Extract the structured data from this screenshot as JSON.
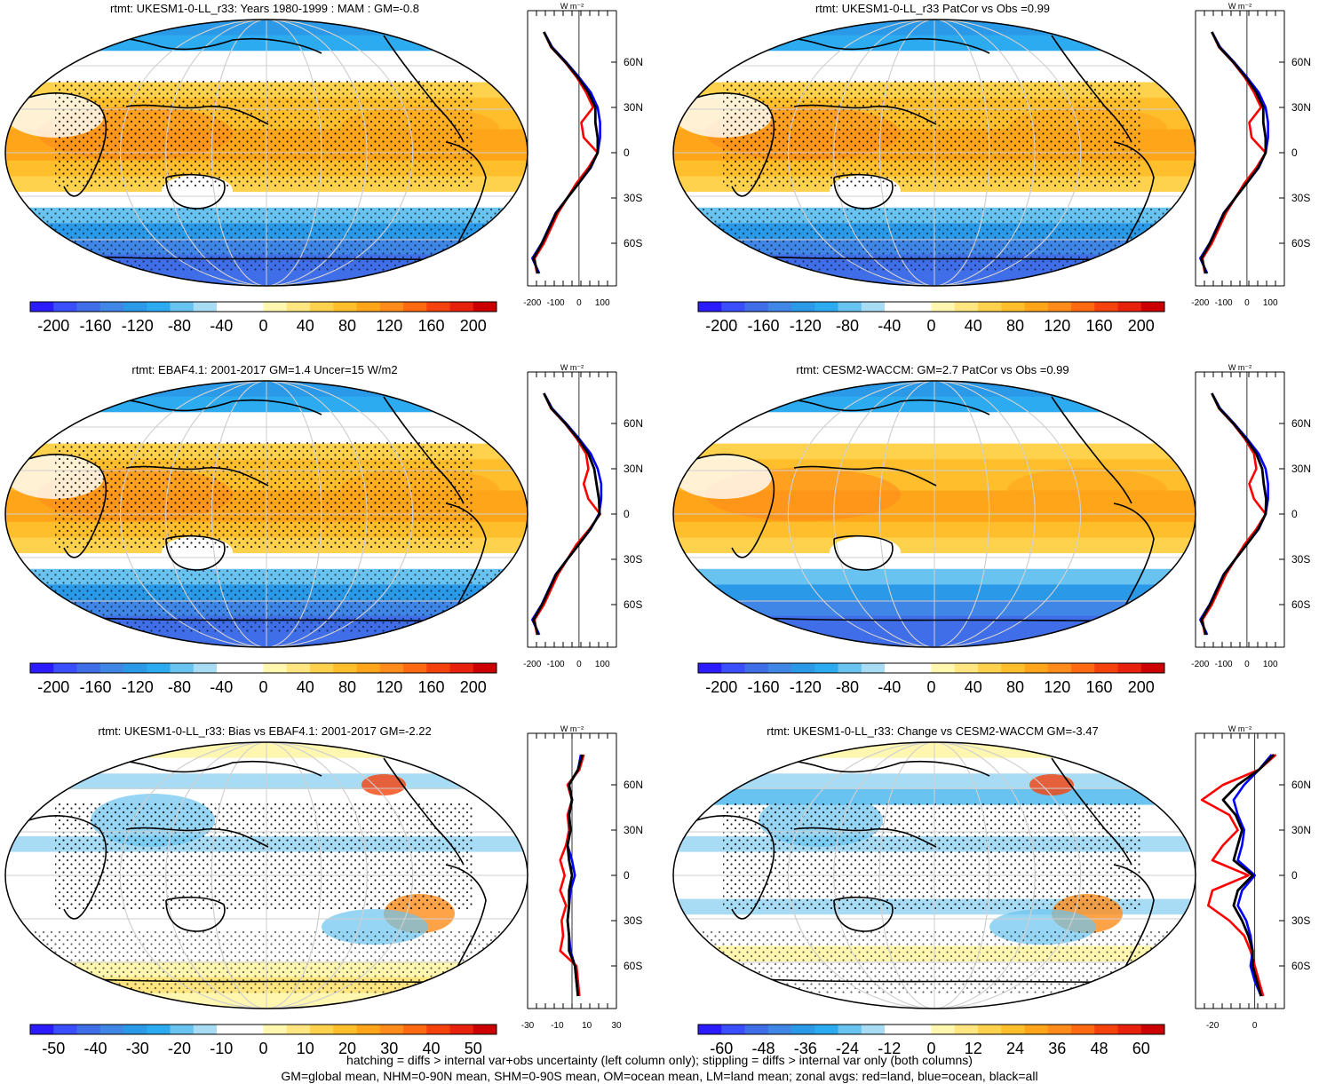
{
  "panels": [
    {
      "title": "rtmt: UKESM1-0-LL_r33: Years 1980-1999 : MAM : GM=-0.8",
      "map_style": "climatology",
      "stipple": true,
      "colorbar": [
        "-200",
        "-160",
        "-120",
        "-80",
        "-40",
        "0",
        "40",
        "80",
        "120",
        "160",
        "200"
      ],
      "zonal_unit": "W m⁻²",
      "zonal_lat_labels": [
        "60N",
        "30N",
        "0",
        "30S",
        "60S"
      ],
      "zonal_x_ticks": [
        "-200",
        "-100",
        "0",
        "100"
      ],
      "zonal_range": [
        -220,
        160
      ],
      "zonal_series": {
        "lat": [
          80,
          70,
          60,
          50,
          40,
          30,
          20,
          10,
          0,
          -10,
          -20,
          -30,
          -40,
          -50,
          -60,
          -70,
          -80
        ],
        "land": [
          -150,
          -120,
          -60,
          -10,
          30,
          60,
          10,
          20,
          80,
          40,
          -10,
          -50,
          -90,
          -120,
          -150,
          -190,
          -180
        ],
        "ocean": [
          -150,
          -115,
          -55,
          0,
          50,
          80,
          90,
          90,
          80,
          50,
          0,
          -50,
          -100,
          -130,
          -160,
          -200,
          -170
        ],
        "all": [
          -150,
          -118,
          -58,
          -5,
          40,
          70,
          70,
          80,
          80,
          48,
          0,
          -50,
          -98,
          -128,
          -158,
          -195,
          -175
        ]
      }
    },
    {
      "title": "rtmt: UKESM1-0-LL_r33 PatCor vs Obs =0.99",
      "map_style": "climatology",
      "stipple": true,
      "colorbar": [
        "-200",
        "-160",
        "-120",
        "-80",
        "-40",
        "0",
        "40",
        "80",
        "120",
        "160",
        "200"
      ],
      "zonal_unit": "W m⁻²",
      "zonal_lat_labels": [
        "60N",
        "30N",
        "0",
        "30S",
        "60S"
      ],
      "zonal_x_ticks": [
        "-200",
        "-100",
        "0",
        "100"
      ],
      "zonal_range": [
        -220,
        160
      ],
      "zonal_series": {
        "lat": [
          80,
          70,
          60,
          50,
          40,
          30,
          20,
          10,
          0,
          -10,
          -20,
          -30,
          -40,
          -50,
          -60,
          -70,
          -80
        ],
        "land": [
          -150,
          -120,
          -60,
          -10,
          30,
          60,
          10,
          20,
          80,
          40,
          -10,
          -50,
          -90,
          -120,
          -150,
          -190,
          -180
        ],
        "ocean": [
          -150,
          -115,
          -55,
          0,
          50,
          80,
          90,
          90,
          80,
          50,
          0,
          -50,
          -100,
          -130,
          -160,
          -200,
          -170
        ],
        "all": [
          -150,
          -118,
          -58,
          -5,
          40,
          70,
          70,
          80,
          80,
          48,
          0,
          -50,
          -98,
          -128,
          -158,
          -195,
          -175
        ]
      }
    },
    {
      "title": "rtmt: EBAF4.1: 2001-2017 GM=1.4 Uncer=15 W/m2",
      "map_style": "climatology",
      "stipple": true,
      "colorbar": [
        "-200",
        "-160",
        "-120",
        "-80",
        "-40",
        "0",
        "40",
        "80",
        "120",
        "160",
        "200"
      ],
      "zonal_unit": "W m⁻²",
      "zonal_lat_labels": [
        "60N",
        "30N",
        "0",
        "30S",
        "60S"
      ],
      "zonal_x_ticks": [
        "-200",
        "-100",
        "0",
        "100"
      ],
      "zonal_range": [
        -220,
        160
      ],
      "zonal_series": {
        "lat": [
          80,
          70,
          60,
          50,
          40,
          30,
          20,
          10,
          0,
          -10,
          -20,
          -30,
          -40,
          -50,
          -60,
          -70,
          -80
        ],
        "land": [
          -150,
          -120,
          -60,
          -10,
          30,
          40,
          20,
          40,
          90,
          45,
          -10,
          -50,
          -90,
          -120,
          -150,
          -190,
          -180
        ],
        "ocean": [
          -150,
          -115,
          -55,
          0,
          50,
          80,
          95,
          95,
          85,
          50,
          0,
          -50,
          -100,
          -130,
          -160,
          -200,
          -170
        ],
        "all": [
          -150,
          -118,
          -58,
          -5,
          40,
          65,
          75,
          85,
          88,
          48,
          0,
          -50,
          -98,
          -128,
          -158,
          -195,
          -175
        ]
      }
    },
    {
      "title": "rtmt: CESM2-WACCM: GM=2.7 PatCor vs Obs =0.99",
      "map_style": "climatology",
      "stipple": false,
      "colorbar": [
        "-200",
        "-160",
        "-120",
        "-80",
        "-40",
        "0",
        "40",
        "80",
        "120",
        "160",
        "200"
      ],
      "zonal_unit": "W m⁻²",
      "zonal_lat_labels": [
        "60N",
        "30N",
        "0",
        "30S",
        "60S"
      ],
      "zonal_x_ticks": [
        "-200",
        "-100",
        "0",
        "100"
      ],
      "zonal_range": [
        -220,
        160
      ],
      "zonal_series": {
        "lat": [
          80,
          70,
          60,
          50,
          40,
          30,
          20,
          10,
          0,
          -10,
          -20,
          -30,
          -40,
          -50,
          -60,
          -70,
          -80
        ],
        "land": [
          -150,
          -120,
          -60,
          -10,
          30,
          40,
          10,
          30,
          80,
          40,
          -10,
          -50,
          -90,
          -120,
          -150,
          -190,
          -180
        ],
        "ocean": [
          -150,
          -115,
          -55,
          0,
          50,
          80,
          90,
          90,
          80,
          50,
          0,
          -50,
          -100,
          -130,
          -160,
          -200,
          -170
        ],
        "all": [
          -150,
          -118,
          -58,
          -5,
          40,
          65,
          72,
          82,
          80,
          48,
          0,
          -50,
          -98,
          -128,
          -158,
          -195,
          -175
        ]
      }
    },
    {
      "title": "rtmt: UKESM1-0-LL_r33: Bias vs EBAF4.1: 2001-2017 GM=-2.22",
      "map_style": "bias",
      "stipple": true,
      "colorbar": [
        "-50",
        "-40",
        "-30",
        "-20",
        "-10",
        "0",
        "10",
        "20",
        "30",
        "40",
        "50"
      ],
      "zonal_unit": "W m⁻²",
      "zonal_lat_labels": [
        "60N",
        "30N",
        "0",
        "30S",
        "60S"
      ],
      "zonal_x_ticks": [
        "-30",
        "-10",
        "10",
        "30"
      ],
      "zonal_range": [
        -30,
        30
      ],
      "zonal_series": {
        "lat": [
          80,
          70,
          60,
          50,
          40,
          30,
          20,
          10,
          0,
          -10,
          -20,
          -30,
          -40,
          -50,
          -60,
          -70,
          -80
        ],
        "land": [
          8,
          5,
          -3,
          0,
          -3,
          -2,
          -4,
          -8,
          -5,
          -8,
          -4,
          -7,
          -6,
          -8,
          3,
          4,
          5
        ],
        "ocean": [
          6,
          4,
          -2,
          0,
          -2,
          -1,
          -3,
          0,
          2,
          -1,
          -2,
          -3,
          -2,
          -1,
          2,
          3,
          4
        ],
        "all": [
          7,
          4,
          -2,
          0,
          -2,
          -1,
          -3,
          -2,
          0,
          -2,
          -2,
          -3,
          -2,
          -2,
          2,
          3,
          4
        ]
      }
    },
    {
      "title": "rtmt: UKESM1-0-LL_r33: Change vs CESM2-WACCM GM=-3.47",
      "map_style": "change",
      "stipple": true,
      "colorbar": [
        "-60",
        "-48",
        "-36",
        "-24",
        "-12",
        "0",
        "12",
        "24",
        "36",
        "48",
        "60"
      ],
      "zonal_unit": "W m⁻²",
      "zonal_lat_labels": [
        "60N",
        "30N",
        "0",
        "30S",
        "60S"
      ],
      "zonal_x_ticks": [
        "-20",
        "0"
      ],
      "zonal_range": [
        -28,
        14
      ],
      "zonal_series": {
        "lat": [
          80,
          70,
          60,
          50,
          40,
          30,
          20,
          10,
          0,
          -10,
          -20,
          -30,
          -40,
          -50,
          -60,
          -70,
          -80
        ],
        "land": [
          10,
          2,
          -15,
          -25,
          -12,
          -8,
          -15,
          -20,
          -3,
          -20,
          -22,
          -12,
          -5,
          -2,
          0,
          2,
          4
        ],
        "ocean": [
          8,
          2,
          -5,
          -10,
          -8,
          -5,
          -6,
          -8,
          0,
          -6,
          -8,
          -4,
          -2,
          -1,
          -2,
          0,
          3
        ],
        "all": [
          9,
          2,
          -8,
          -15,
          -9,
          -6,
          -8,
          -10,
          -1,
          -8,
          -10,
          -6,
          -3,
          -1,
          -1,
          1,
          3
        ]
      }
    }
  ],
  "footer": {
    "line1": "hatching = diffs > internal var+obs uncertainty (left column only); stippling = diffs > internal var only (both columns)",
    "line2": "GM=global mean, NHM=0-90N mean, SHM=0-90S mean, OM=ocean mean, LM=land mean; zonal avgs: red=land, blue=ocean, black=all"
  },
  "colors": {
    "land": "#ff0000",
    "ocean": "#0000ff",
    "all": "#000000",
    "palette": [
      "#2a1cff",
      "#3a4dff",
      "#3f6ee8",
      "#3f86e6",
      "#2a99e8",
      "#2cabf0",
      "#69c3f0",
      "#a8dcf5",
      "#ffffff",
      "#ffffff",
      "#fff7b0",
      "#ffe680",
      "#ffd24d",
      "#ffbe2b",
      "#ffa51a",
      "#ff8c1a",
      "#ff6a10",
      "#f5420d",
      "#e8210d",
      "#cc0000"
    ]
  }
}
